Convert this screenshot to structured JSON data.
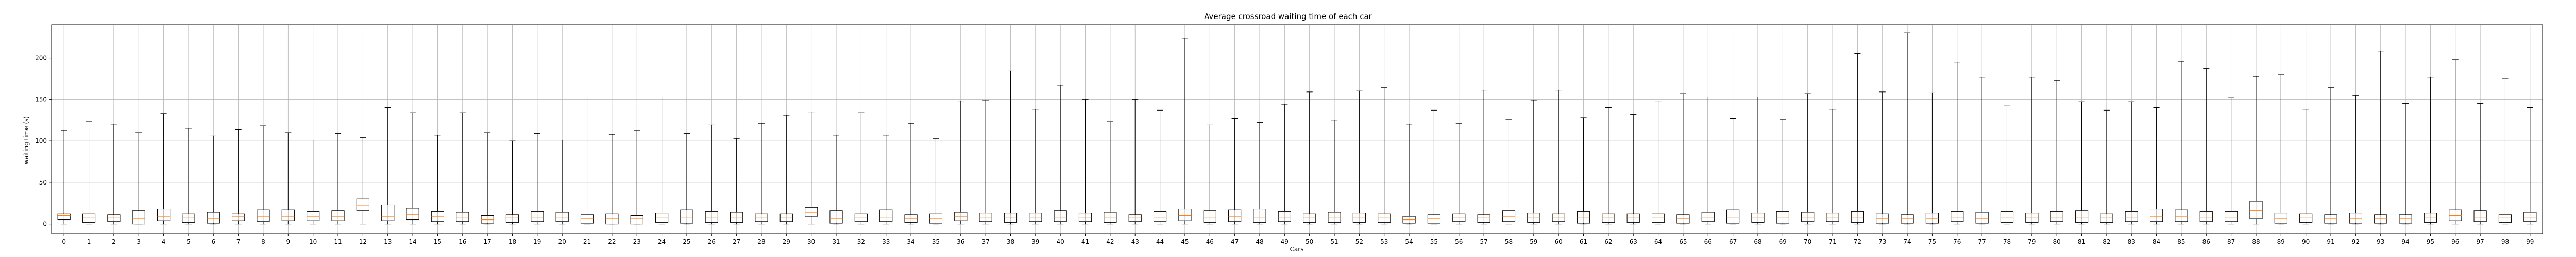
{
  "chart_data": {
    "type": "box",
    "title": "Average crossroad waiting time of each car",
    "xlabel": "Cars",
    "ylabel": "waiting time (s)",
    "ylim": [
      -12,
      240
    ],
    "yticks": [
      0,
      50,
      100,
      150,
      200
    ],
    "grid": true,
    "categories": [
      "0",
      "1",
      "2",
      "3",
      "4",
      "5",
      "6",
      "7",
      "8",
      "9",
      "10",
      "11",
      "12",
      "13",
      "14",
      "15",
      "16",
      "17",
      "18",
      "19",
      "20",
      "21",
      "22",
      "23",
      "24",
      "25",
      "26",
      "27",
      "28",
      "29",
      "30",
      "31",
      "32",
      "33",
      "34",
      "35",
      "36",
      "37",
      "38",
      "39",
      "40",
      "41",
      "42",
      "43",
      "44",
      "45",
      "46",
      "47",
      "48",
      "49",
      "50",
      "51",
      "52",
      "53",
      "54",
      "55",
      "56",
      "57",
      "58",
      "59",
      "60",
      "61",
      "62",
      "63",
      "64",
      "65",
      "66",
      "67",
      "68",
      "69",
      "70",
      "71",
      "72",
      "73",
      "74",
      "75",
      "76",
      "77",
      "78",
      "79",
      "80",
      "81",
      "82",
      "83",
      "84",
      "85",
      "86",
      "87",
      "88",
      "89",
      "90",
      "91",
      "92",
      "93",
      "94",
      "95",
      "96",
      "97",
      "98",
      "99"
    ],
    "whisker_max": [
      113,
      123,
      120,
      110,
      133,
      115,
      106,
      114,
      118,
      110,
      101,
      109,
      104,
      140,
      134,
      107,
      134,
      110,
      100,
      109,
      101,
      153,
      108,
      113,
      153,
      109,
      119,
      103,
      121,
      131,
      135,
      107,
      134,
      107,
      121,
      103,
      148,
      149,
      184,
      138,
      167,
      150,
      123,
      150,
      137,
      224,
      119,
      127,
      122,
      144,
      159,
      125,
      160,
      164,
      120,
      137,
      121,
      161,
      126,
      149,
      161,
      128,
      140,
      132,
      148,
      157,
      153,
      127,
      153,
      126,
      157,
      138,
      205,
      159,
      230,
      158,
      195,
      177,
      142,
      177,
      173,
      147,
      137,
      147,
      140,
      196,
      187,
      152,
      178,
      180,
      138,
      164,
      155,
      208,
      145,
      177,
      198,
      145,
      175,
      140
    ],
    "q3": [
      12,
      12,
      11,
      16,
      18,
      12,
      14,
      12,
      17,
      17,
      15,
      16,
      30,
      23,
      19,
      15,
      14,
      10,
      11,
      15,
      14,
      11,
      12,
      10,
      13,
      17,
      15,
      14,
      12,
      12,
      20,
      16,
      12,
      17,
      11,
      12,
      14,
      13,
      13,
      13,
      16,
      13,
      14,
      11,
      15,
      18,
      16,
      17,
      18,
      15,
      12,
      14,
      13,
      12,
      9,
      11,
      12,
      11,
      16,
      13,
      12,
      15,
      12,
      12,
      12,
      11,
      14,
      17,
      13,
      15,
      14,
      13,
      15,
      12,
      11,
      13,
      15,
      14,
      15,
      13,
      15,
      16,
      12,
      15,
      18,
      17,
      15,
      15,
      27,
      13,
      12,
      11,
      13,
      11,
      11,
      13,
      17,
      16,
      11,
      14
    ],
    "median": [
      10,
      7,
      8,
      6,
      9,
      8,
      6,
      9,
      9,
      9,
      9,
      9,
      22,
      9,
      11,
      9,
      8,
      5,
      7,
      8,
      8,
      6,
      6,
      6,
      7,
      7,
      8,
      7,
      8,
      8,
      14,
      6,
      7,
      8,
      6,
      6,
      9,
      8,
      7,
      8,
      8,
      8,
      7,
      8,
      8,
      10,
      8,
      9,
      8,
      8,
      7,
      7,
      7,
      7,
      5,
      6,
      8,
      7,
      9,
      7,
      8,
      7,
      7,
      7,
      7,
      6,
      8,
      7,
      7,
      7,
      8,
      8,
      7,
      6,
      6,
      6,
      8,
      6,
      8,
      7,
      8,
      7,
      7,
      8,
      9,
      9,
      8,
      8,
      16,
      6,
      7,
      6,
      6,
      6,
      6,
      7,
      10,
      8,
      7,
      8
    ],
    "q1": [
      5,
      2,
      3,
      0,
      4,
      2,
      1,
      4,
      3,
      4,
      4,
      4,
      16,
      4,
      5,
      3,
      3,
      1,
      2,
      3,
      3,
      1,
      0,
      0,
      2,
      1,
      2,
      2,
      3,
      3,
      9,
      1,
      3,
      3,
      2,
      1,
      4,
      3,
      2,
      3,
      3,
      3,
      2,
      3,
      3,
      4,
      2,
      3,
      2,
      3,
      2,
      2,
      2,
      2,
      1,
      1,
      3,
      2,
      3,
      2,
      3,
      1,
      2,
      2,
      2,
      1,
      3,
      1,
      2,
      1,
      3,
      3,
      2,
      1,
      1,
      1,
      3,
      1,
      2,
      2,
      3,
      2,
      2,
      3,
      3,
      3,
      3,
      3,
      6,
      1,
      2,
      1,
      1,
      1,
      1,
      2,
      4,
      3,
      2,
      3
    ],
    "whisker_min": [
      0,
      0,
      0,
      0,
      0,
      0,
      0,
      0,
      0,
      0,
      0,
      0,
      0,
      0,
      0,
      0,
      0,
      0,
      0,
      0,
      0,
      0,
      0,
      0,
      0,
      0,
      0,
      0,
      0,
      0,
      0,
      0,
      0,
      0,
      0,
      0,
      0,
      0,
      0,
      0,
      0,
      0,
      0,
      0,
      0,
      0,
      0,
      0,
      0,
      0,
      0,
      0,
      0,
      0,
      0,
      0,
      0,
      0,
      0,
      0,
      0,
      0,
      0,
      0,
      0,
      0,
      0,
      0,
      0,
      0,
      0,
      0,
      0,
      0,
      0,
      0,
      0,
      0,
      0,
      0,
      0,
      0,
      0,
      0,
      0,
      0,
      0,
      0,
      0,
      0,
      0,
      0,
      0,
      0,
      0,
      0,
      0,
      0,
      0,
      0
    ],
    "colors": {
      "box": "#000000",
      "median": "#ff7f0e",
      "grid": "#b0b0b0"
    }
  }
}
